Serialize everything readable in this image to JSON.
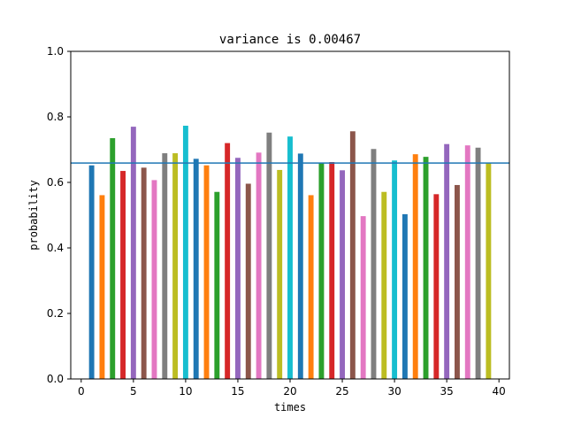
{
  "chart_data": {
    "type": "bar",
    "title": "variance is 0.00467",
    "xlabel": "times",
    "ylabel": "probability",
    "xlim": [
      -1.0,
      41.0
    ],
    "ylim": [
      0.0,
      1.0
    ],
    "xticks": [
      0,
      5,
      10,
      15,
      20,
      25,
      30,
      35,
      40
    ],
    "yticks": [
      0.0,
      0.2,
      0.4,
      0.6,
      0.8,
      1.0
    ],
    "xtick_labels": [
      "0",
      "5",
      "10",
      "15",
      "20",
      "25",
      "30",
      "35",
      "40"
    ],
    "ytick_labels": [
      "0.0",
      "0.2",
      "0.4",
      "0.6",
      "0.8",
      "1.0"
    ],
    "reference_line": {
      "y": 0.659,
      "color": "#1f77b4"
    },
    "x": [
      1,
      2,
      3,
      4,
      5,
      6,
      7,
      8,
      9,
      10,
      11,
      12,
      13,
      14,
      15,
      16,
      17,
      18,
      19,
      20,
      21,
      22,
      23,
      24,
      25,
      26,
      27,
      28,
      29,
      30,
      31,
      32,
      33,
      34,
      35,
      36,
      37,
      38,
      39
    ],
    "values": [
      0.652,
      0.561,
      0.735,
      0.635,
      0.77,
      0.645,
      0.607,
      0.689,
      0.689,
      0.773,
      0.672,
      0.652,
      0.571,
      0.72,
      0.675,
      0.596,
      0.691,
      0.752,
      0.638,
      0.74,
      0.688,
      0.561,
      0.659,
      0.662,
      0.637,
      0.756,
      0.497,
      0.702,
      0.571,
      0.667,
      0.503,
      0.686,
      0.678,
      0.564,
      0.717,
      0.592,
      0.713,
      0.706,
      0.659
    ],
    "colors": [
      "#1f77b4",
      "#ff7f0e",
      "#2ca02c",
      "#d62728",
      "#9467bd",
      "#8c564b",
      "#e377c2",
      "#7f7f7f",
      "#bcbd22",
      "#17becf"
    ],
    "bar_width": 0.5
  }
}
